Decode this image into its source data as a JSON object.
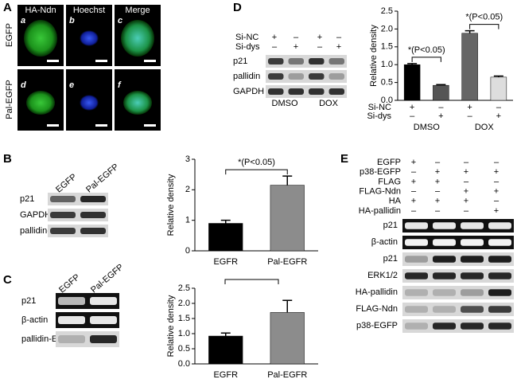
{
  "panels": {
    "a": {
      "letter": "A",
      "columns": [
        "HA-Ndn",
        "Hoechst",
        "Merge"
      ],
      "rows": [
        "EGFP",
        "Pal-EGFP"
      ],
      "subpanels": [
        "a",
        "b",
        "c",
        "d",
        "e",
        "f"
      ]
    },
    "b": {
      "letter": "B",
      "lanes": [
        "EGFP",
        "Pal-EGFP"
      ],
      "blots": [
        "p21",
        "GAPDH",
        "pallidin-EGFP"
      ]
    },
    "c": {
      "letter": "C",
      "lanes": [
        "EGFP",
        "Pal-EGFP"
      ],
      "blots": [
        "p21",
        "β-actin",
        "pallidin-EGFP"
      ]
    },
    "d": {
      "letter": "D",
      "conditions": [
        {
          "name": "Si-NC",
          "signs": [
            "+",
            "–",
            "+",
            "–"
          ]
        },
        {
          "name": "Si-dys",
          "signs": [
            "–",
            "+",
            "–",
            "+"
          ]
        }
      ],
      "blots": [
        "p21",
        "pallidin",
        "GAPDH"
      ],
      "groups": [
        "DMSO",
        "DOX"
      ]
    },
    "e": {
      "letter": "E",
      "conditions": [
        {
          "name": "EGFP",
          "signs": [
            "+",
            "–",
            "–",
            "–"
          ]
        },
        {
          "name": "p38-EGFP",
          "signs": [
            "–",
            "+",
            "+",
            "+"
          ]
        },
        {
          "name": "FLAG",
          "signs": [
            "+",
            "+",
            "–",
            "–"
          ]
        },
        {
          "name": "FLAG-Ndn",
          "signs": [
            "–",
            "–",
            "+",
            "+"
          ]
        },
        {
          "name": "HA",
          "signs": [
            "+",
            "+",
            "+",
            "–"
          ]
        },
        {
          "name": "HA-pallidin",
          "signs": [
            "–",
            "–",
            "–",
            "+"
          ]
        }
      ],
      "blots": [
        "p21",
        "β-actin",
        "p21",
        "ERK1/2",
        "HA-pallidin",
        "FLAG-Ndn",
        "p38-EGFP"
      ]
    }
  },
  "chart_data": [
    {
      "type": "bar",
      "ylabel": "Relative density",
      "categories": [
        "EGFR",
        "Pal-EGFR"
      ],
      "values": [
        0.9,
        2.15
      ],
      "errors": [
        0.1,
        0.3
      ],
      "colors": [
        "#000000",
        "#8c8c8c"
      ],
      "ylim": [
        0,
        3
      ],
      "yticks": [
        0,
        1,
        2,
        3
      ],
      "annotations": [
        "*(P<0.05)"
      ]
    },
    {
      "type": "bar",
      "ylabel": "Relative density",
      "categories": [
        "EGFR",
        "Pal-EGFR"
      ],
      "values": [
        0.92,
        1.7
      ],
      "errors": [
        0.1,
        0.4
      ],
      "colors": [
        "#000000",
        "#8c8c8c"
      ],
      "ylim": [
        0,
        2.5
      ],
      "yticks": [
        {
          "value": 0,
          "label": "0.0"
        },
        {
          "value": 0.5,
          "label": "0.5"
        },
        {
          "value": 1,
          "label": "1.0"
        },
        {
          "value": 1.5,
          "label": "1.5"
        },
        {
          "value": 2,
          "label": "2.0"
        },
        {
          "value": 2.5,
          "label": "2.5"
        }
      ]
    },
    {
      "type": "bar",
      "ylabel": "Relative density",
      "categories": [
        null,
        null,
        null,
        null
      ],
      "values": [
        1.0,
        0.42,
        1.88,
        0.65
      ],
      "errors": [
        0.03,
        0.02,
        0.07,
        0.03
      ],
      "colors": [
        "#000000",
        "#555555",
        "#666666",
        "#dddddd"
      ],
      "ylim": [
        0,
        2.5
      ],
      "yticks": [
        {
          "value": 0,
          "label": "0.0"
        },
        {
          "value": 0.5,
          "label": "0.5"
        },
        {
          "value": 1,
          "label": "1.0"
        },
        {
          "value": 1.5,
          "label": "1.5"
        },
        {
          "value": 2,
          "label": "2.0"
        },
        {
          "value": 2.5,
          "label": "2.5"
        }
      ],
      "annotations": [
        "*(P<0.05)",
        "*(P<0.05)"
      ],
      "conditions": [
        {
          "name": "Si-NC",
          "signs": [
            "+",
            "–",
            "+",
            "–"
          ]
        },
        {
          "name": "Si-dys",
          "signs": [
            "–",
            "+",
            "–",
            "+"
          ]
        }
      ],
      "groups": [
        "DMSO",
        "DOX"
      ]
    }
  ]
}
